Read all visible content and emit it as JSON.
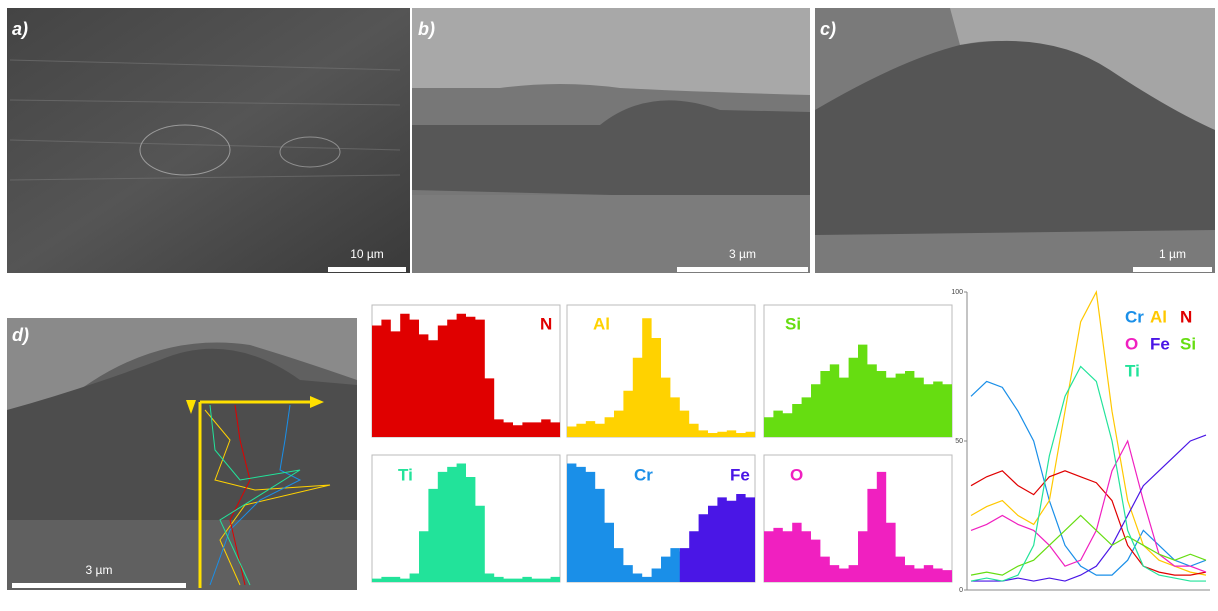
{
  "panels": [
    {
      "label": "a)",
      "scale_bar": "10 µm"
    },
    {
      "label": "b)",
      "scale_bar": "3 µm"
    },
    {
      "label": "c)",
      "scale_bar": "1 µm"
    },
    {
      "label": "d)",
      "scale_bar": "3 µm"
    }
  ],
  "mini_plots": [
    {
      "ylim": [
        0,
        45
      ],
      "elements": [
        {
          "name": "N",
          "color": "#e00000",
          "values": [
            38,
            40,
            36,
            42,
            40,
            35,
            33,
            38,
            40,
            42,
            41,
            40,
            20,
            6,
            5,
            4,
            5,
            5,
            6,
            5
          ]
        }
      ]
    },
    {
      "ylim": [
        0,
        100
      ],
      "elements": [
        {
          "name": "Al",
          "color": "#ffd200",
          "values": [
            8,
            10,
            12,
            10,
            15,
            20,
            35,
            60,
            90,
            75,
            45,
            30,
            20,
            10,
            5,
            3,
            4,
            5,
            3,
            4
          ]
        }
      ]
    },
    {
      "ylim": [
        0,
        100
      ],
      "elements": [
        {
          "name": "Si",
          "color": "#66dd11",
          "values": [
            15,
            20,
            18,
            25,
            30,
            40,
            50,
            55,
            45,
            60,
            70,
            55,
            50,
            45,
            48,
            50,
            45,
            40,
            42,
            40
          ]
        }
      ]
    },
    {
      "ylim": [
        0,
        75
      ],
      "elements": [
        {
          "name": "Ti",
          "color": "#22e39a",
          "values": [
            2,
            3,
            3,
            2,
            5,
            30,
            55,
            65,
            68,
            70,
            62,
            45,
            5,
            3,
            2,
            2,
            3,
            2,
            2,
            3
          ]
        }
      ]
    },
    {
      "ylim": [
        0,
        75
      ],
      "elements": [
        {
          "name": "Cr",
          "color": "#1a8fe8",
          "values": [
            70,
            68,
            65,
            55,
            35,
            20,
            10,
            5,
            3,
            8,
            15,
            20,
            18,
            15,
            10,
            8,
            12,
            15,
            18,
            15
          ]
        },
        {
          "name": "Fe",
          "color": "#4a16e6",
          "values": [
            0,
            0,
            0,
            0,
            0,
            0,
            0,
            0,
            0,
            0,
            0,
            0,
            20,
            30,
            40,
            45,
            50,
            48,
            52,
            50
          ]
        }
      ]
    },
    {
      "ylim": [
        0,
        75
      ],
      "elements": [
        {
          "name": "O",
          "color": "#f020c0",
          "values": [
            30,
            32,
            30,
            35,
            30,
            25,
            15,
            10,
            8,
            10,
            30,
            55,
            65,
            35,
            15,
            10,
            8,
            10,
            8,
            7
          ]
        }
      ]
    }
  ],
  "line_scan": {
    "ylim": [
      0,
      100
    ],
    "yticks": [
      0,
      50,
      100
    ],
    "series": [
      {
        "name": "Cr",
        "color": "#1a8fe8",
        "values": [
          65,
          70,
          68,
          60,
          50,
          30,
          15,
          8,
          5,
          5,
          10,
          20,
          15,
          10,
          8,
          10
        ]
      },
      {
        "name": "Al",
        "color": "#ffc800",
        "values": [
          25,
          28,
          30,
          25,
          22,
          30,
          60,
          90,
          100,
          60,
          30,
          15,
          10,
          8,
          6,
          5
        ]
      },
      {
        "name": "N",
        "color": "#e00000",
        "values": [
          35,
          38,
          40,
          35,
          32,
          38,
          40,
          38,
          36,
          30,
          15,
          8,
          6,
          5,
          5,
          6
        ]
      },
      {
        "name": "O",
        "color": "#f020c0",
        "values": [
          20,
          22,
          25,
          22,
          20,
          15,
          8,
          10,
          20,
          40,
          50,
          30,
          12,
          8,
          8,
          6
        ]
      },
      {
        "name": "Fe",
        "color": "#4a16e6",
        "values": [
          3,
          3,
          3,
          4,
          3,
          4,
          3,
          5,
          8,
          15,
          25,
          35,
          40,
          45,
          50,
          52
        ]
      },
      {
        "name": "Si",
        "color": "#66dd11",
        "values": [
          5,
          6,
          5,
          8,
          10,
          15,
          20,
          25,
          20,
          15,
          18,
          15,
          12,
          10,
          12,
          10
        ]
      },
      {
        "name": "Ti",
        "color": "#22e39a",
        "values": [
          3,
          4,
          3,
          5,
          15,
          45,
          65,
          75,
          70,
          50,
          20,
          8,
          5,
          4,
          3,
          3
        ]
      }
    ]
  }
}
